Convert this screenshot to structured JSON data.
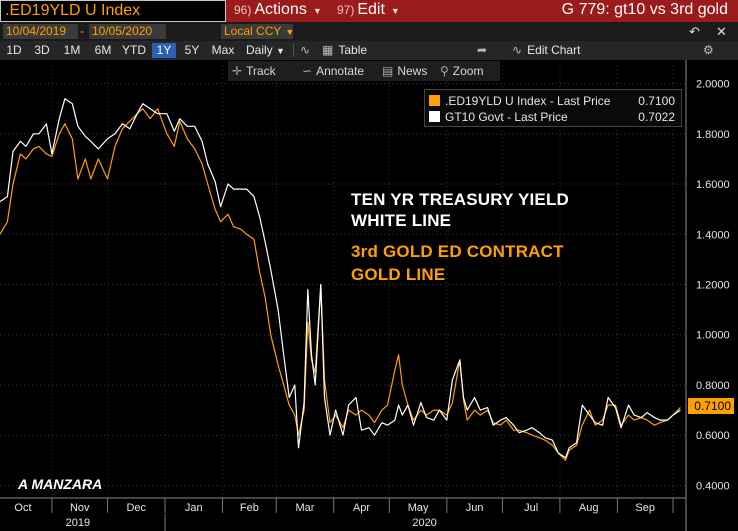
{
  "toolbar": {
    "ticker": ".ED19YLD U Index",
    "actions_num": "96)",
    "actions_label": "Actions",
    "edit_num": "97)",
    "edit_label": "Edit",
    "graph_title": "G 779: gt10 vs 3rd gold",
    "start_date": "10/04/2019",
    "end_date": "10/05/2020",
    "currency": "Local CCY",
    "periods": [
      "1D",
      "3D",
      "1M",
      "6M",
      "YTD",
      "1Y",
      "5Y",
      "Max"
    ],
    "active_period": "1Y",
    "frequency": "Daily",
    "table_label": "Table",
    "edit_chart_label": "Edit Chart",
    "track_label": "Track",
    "annotate_label": "Annotate",
    "news_label": "News",
    "zoom_label": "Zoom"
  },
  "legend": {
    "gold_label": ".ED19YLD U Index - Last Price",
    "gold_value": "0.7100",
    "white_label": "GT10 Govt - Last Price",
    "white_value": "0.7022"
  },
  "annotations": {
    "white_line1": "TEN YR TREASURY YIELD",
    "white_line2": "WHITE LINE",
    "gold_line1": "3rd GOLD ED CONTRACT",
    "gold_line2": "GOLD LINE",
    "author": "A MANZARA"
  },
  "last_price_tag": "0.7100",
  "colors": {
    "gold": "#ffa000",
    "white": "#ffffff",
    "title_bar": "#9b1a1a",
    "active_button": "#2d60b3"
  },
  "chart_data": {
    "type": "line",
    "x_tick_labels": [
      "Oct",
      "Nov",
      "Dec",
      "Jan",
      "Feb",
      "Mar",
      "Apr",
      "May",
      "Jun",
      "Jul",
      "Aug",
      "Sep"
    ],
    "x_year_labels": [
      "2019",
      "2020"
    ],
    "y_tick_labels": [
      "2.0000",
      "1.8000",
      "1.6000",
      "1.4000",
      "1.2000",
      "1.0000",
      "0.8000",
      "0.6000",
      "0.4000"
    ],
    "ylim": [
      0.35,
      2.07
    ],
    "y_axis_side": "right",
    "x_unit": "approximate date (YYYY-MM-DD)",
    "series": [
      {
        "name": ".ED19YLD U Index - Last Price",
        "color": "#ffa000",
        "points": [
          [
            "2019-10-04",
            1.4
          ],
          [
            "2019-10-08",
            1.45
          ],
          [
            "2019-10-11",
            1.6
          ],
          [
            "2019-10-15",
            1.72
          ],
          [
            "2019-10-18",
            1.7
          ],
          [
            "2019-10-22",
            1.74
          ],
          [
            "2019-10-25",
            1.75
          ],
          [
            "2019-10-29",
            1.72
          ],
          [
            "2019-11-01",
            1.71
          ],
          [
            "2019-11-05",
            1.8
          ],
          [
            "2019-11-08",
            1.84
          ],
          [
            "2019-11-12",
            1.78
          ],
          [
            "2019-11-15",
            1.62
          ],
          [
            "2019-11-19",
            1.7
          ],
          [
            "2019-11-22",
            1.62
          ],
          [
            "2019-11-26",
            1.7
          ],
          [
            "2019-12-01",
            1.62
          ],
          [
            "2019-12-05",
            1.75
          ],
          [
            "2019-12-09",
            1.82
          ],
          [
            "2019-12-13",
            1.85
          ],
          [
            "2019-12-17",
            1.88
          ],
          [
            "2019-12-20",
            1.9
          ],
          [
            "2019-12-24",
            1.86
          ],
          [
            "2019-12-28",
            1.9
          ],
          [
            "2020-01-02",
            1.8
          ],
          [
            "2020-01-06",
            1.75
          ],
          [
            "2020-01-09",
            1.85
          ],
          [
            "2020-01-13",
            1.78
          ],
          [
            "2020-01-17",
            1.74
          ],
          [
            "2020-01-21",
            1.68
          ],
          [
            "2020-01-24",
            1.6
          ],
          [
            "2020-01-28",
            1.5
          ],
          [
            "2020-01-31",
            1.45
          ],
          [
            "2020-02-04",
            1.48
          ],
          [
            "2020-02-07",
            1.43
          ],
          [
            "2020-02-11",
            1.42
          ],
          [
            "2020-02-14",
            1.4
          ],
          [
            "2020-02-18",
            1.38
          ],
          [
            "2020-02-21",
            1.25
          ],
          [
            "2020-02-24",
            1.15
          ],
          [
            "2020-02-27",
            1.0
          ],
          [
            "2020-03-02",
            0.88
          ],
          [
            "2020-03-05",
            0.8
          ],
          [
            "2020-03-08",
            0.72
          ],
          [
            "2020-03-11",
            0.68
          ],
          [
            "2020-03-13",
            0.6
          ],
          [
            "2020-03-16",
            0.7
          ],
          [
            "2020-03-18",
            1.05
          ],
          [
            "2020-03-20",
            0.9
          ],
          [
            "2020-03-22",
            0.85
          ],
          [
            "2020-03-25",
            1.2
          ],
          [
            "2020-03-27",
            0.82
          ],
          [
            "2020-03-30",
            0.65
          ],
          [
            "2020-04-02",
            0.68
          ],
          [
            "2020-04-06",
            0.63
          ],
          [
            "2020-04-09",
            0.7
          ],
          [
            "2020-04-13",
            0.68
          ],
          [
            "2020-04-16",
            0.7
          ],
          [
            "2020-04-20",
            0.68
          ],
          [
            "2020-04-23",
            0.65
          ],
          [
            "2020-04-27",
            0.7
          ],
          [
            "2020-04-30",
            0.72
          ],
          [
            "2020-05-04",
            0.86
          ],
          [
            "2020-05-06",
            0.92
          ],
          [
            "2020-05-08",
            0.8
          ],
          [
            "2020-05-11",
            0.72
          ],
          [
            "2020-05-14",
            0.66
          ],
          [
            "2020-05-18",
            0.7
          ],
          [
            "2020-05-21",
            0.68
          ],
          [
            "2020-05-25",
            0.7
          ],
          [
            "2020-05-28",
            0.7
          ],
          [
            "2020-06-01",
            0.68
          ],
          [
            "2020-06-04",
            0.73
          ],
          [
            "2020-06-08",
            0.9
          ],
          [
            "2020-06-10",
            0.74
          ],
          [
            "2020-06-12",
            0.66
          ],
          [
            "2020-06-16",
            0.7
          ],
          [
            "2020-06-19",
            0.68
          ],
          [
            "2020-06-23",
            0.7
          ],
          [
            "2020-06-26",
            0.65
          ],
          [
            "2020-06-30",
            0.64
          ],
          [
            "2020-07-03",
            0.66
          ],
          [
            "2020-07-07",
            0.62
          ],
          [
            "2020-07-10",
            0.62
          ],
          [
            "2020-07-14",
            0.61
          ],
          [
            "2020-07-17",
            0.6
          ],
          [
            "2020-07-21",
            0.59
          ],
          [
            "2020-07-24",
            0.58
          ],
          [
            "2020-07-28",
            0.56
          ],
          [
            "2020-07-31",
            0.53
          ],
          [
            "2020-08-04",
            0.5
          ],
          [
            "2020-08-06",
            0.54
          ],
          [
            "2020-08-10",
            0.56
          ],
          [
            "2020-08-13",
            0.64
          ],
          [
            "2020-08-17",
            0.7
          ],
          [
            "2020-08-20",
            0.64
          ],
          [
            "2020-08-24",
            0.66
          ],
          [
            "2020-08-27",
            0.72
          ],
          [
            "2020-08-31",
            0.72
          ],
          [
            "2020-09-03",
            0.64
          ],
          [
            "2020-09-07",
            0.68
          ],
          [
            "2020-09-10",
            0.66
          ],
          [
            "2020-09-14",
            0.67
          ],
          [
            "2020-09-17",
            0.66
          ],
          [
            "2020-09-21",
            0.64
          ],
          [
            "2020-09-24",
            0.65
          ],
          [
            "2020-09-28",
            0.66
          ],
          [
            "2020-10-01",
            0.68
          ],
          [
            "2020-10-05",
            0.71
          ]
        ]
      },
      {
        "name": "GT10 Govt - Last Price",
        "color": "#ffffff",
        "points": [
          [
            "2019-10-04",
            1.53
          ],
          [
            "2019-10-08",
            1.55
          ],
          [
            "2019-10-11",
            1.73
          ],
          [
            "2019-10-15",
            1.77
          ],
          [
            "2019-10-18",
            1.75
          ],
          [
            "2019-10-22",
            1.8
          ],
          [
            "2019-10-25",
            1.8
          ],
          [
            "2019-10-29",
            1.84
          ],
          [
            "2019-11-01",
            1.72
          ],
          [
            "2019-11-05",
            1.86
          ],
          [
            "2019-11-08",
            1.94
          ],
          [
            "2019-11-12",
            1.92
          ],
          [
            "2019-11-15",
            1.83
          ],
          [
            "2019-11-19",
            1.79
          ],
          [
            "2019-11-22",
            1.77
          ],
          [
            "2019-11-26",
            1.74
          ],
          [
            "2019-12-01",
            1.78
          ],
          [
            "2019-12-05",
            1.8
          ],
          [
            "2019-12-09",
            1.84
          ],
          [
            "2019-12-13",
            1.82
          ],
          [
            "2019-12-17",
            1.88
          ],
          [
            "2019-12-20",
            1.92
          ],
          [
            "2019-12-24",
            1.9
          ],
          [
            "2019-12-28",
            1.88
          ],
          [
            "2020-01-02",
            1.88
          ],
          [
            "2020-01-06",
            1.81
          ],
          [
            "2020-01-09",
            1.86
          ],
          [
            "2020-01-13",
            1.83
          ],
          [
            "2020-01-17",
            1.83
          ],
          [
            "2020-01-21",
            1.77
          ],
          [
            "2020-01-24",
            1.68
          ],
          [
            "2020-01-28",
            1.61
          ],
          [
            "2020-01-31",
            1.51
          ],
          [
            "2020-02-04",
            1.6
          ],
          [
            "2020-02-07",
            1.58
          ],
          [
            "2020-02-11",
            1.58
          ],
          [
            "2020-02-14",
            1.58
          ],
          [
            "2020-02-18",
            1.55
          ],
          [
            "2020-02-21",
            1.47
          ],
          [
            "2020-02-24",
            1.37
          ],
          [
            "2020-02-27",
            1.26
          ],
          [
            "2020-03-02",
            1.1
          ],
          [
            "2020-03-05",
            0.92
          ],
          [
            "2020-03-08",
            0.75
          ],
          [
            "2020-03-11",
            0.8
          ],
          [
            "2020-03-13",
            0.55
          ],
          [
            "2020-03-16",
            0.73
          ],
          [
            "2020-03-18",
            1.18
          ],
          [
            "2020-03-20",
            0.92
          ],
          [
            "2020-03-22",
            0.8
          ],
          [
            "2020-03-25",
            1.2
          ],
          [
            "2020-03-27",
            0.75
          ],
          [
            "2020-03-30",
            0.6
          ],
          [
            "2020-04-02",
            0.7
          ],
          [
            "2020-04-06",
            0.6
          ],
          [
            "2020-04-09",
            0.72
          ],
          [
            "2020-04-13",
            0.75
          ],
          [
            "2020-04-16",
            0.62
          ],
          [
            "2020-04-20",
            0.63
          ],
          [
            "2020-04-23",
            0.6
          ],
          [
            "2020-04-27",
            0.65
          ],
          [
            "2020-04-30",
            0.64
          ],
          [
            "2020-05-04",
            0.66
          ],
          [
            "2020-05-06",
            0.72
          ],
          [
            "2020-05-08",
            0.68
          ],
          [
            "2020-05-11",
            0.72
          ],
          [
            "2020-05-14",
            0.64
          ],
          [
            "2020-05-18",
            0.73
          ],
          [
            "2020-05-21",
            0.67
          ],
          [
            "2020-05-25",
            0.66
          ],
          [
            "2020-05-28",
            0.7
          ],
          [
            "2020-06-01",
            0.66
          ],
          [
            "2020-06-04",
            0.82
          ],
          [
            "2020-06-08",
            0.9
          ],
          [
            "2020-06-10",
            0.75
          ],
          [
            "2020-06-12",
            0.7
          ],
          [
            "2020-06-16",
            0.75
          ],
          [
            "2020-06-19",
            0.7
          ],
          [
            "2020-06-23",
            0.71
          ],
          [
            "2020-06-26",
            0.64
          ],
          [
            "2020-06-30",
            0.66
          ],
          [
            "2020-07-03",
            0.67
          ],
          [
            "2020-07-07",
            0.64
          ],
          [
            "2020-07-10",
            0.61
          ],
          [
            "2020-07-14",
            0.62
          ],
          [
            "2020-07-17",
            0.63
          ],
          [
            "2020-07-21",
            0.61
          ],
          [
            "2020-07-24",
            0.59
          ],
          [
            "2020-07-28",
            0.58
          ],
          [
            "2020-07-31",
            0.53
          ],
          [
            "2020-08-04",
            0.51
          ],
          [
            "2020-08-06",
            0.55
          ],
          [
            "2020-08-10",
            0.57
          ],
          [
            "2020-08-13",
            0.72
          ],
          [
            "2020-08-17",
            0.68
          ],
          [
            "2020-08-20",
            0.65
          ],
          [
            "2020-08-24",
            0.64
          ],
          [
            "2020-08-27",
            0.75
          ],
          [
            "2020-08-31",
            0.71
          ],
          [
            "2020-09-03",
            0.63
          ],
          [
            "2020-09-07",
            0.72
          ],
          [
            "2020-09-10",
            0.68
          ],
          [
            "2020-09-14",
            0.67
          ],
          [
            "2020-09-17",
            0.69
          ],
          [
            "2020-09-21",
            0.67
          ],
          [
            "2020-09-24",
            0.66
          ],
          [
            "2020-09-28",
            0.66
          ],
          [
            "2020-10-01",
            0.68
          ],
          [
            "2020-10-05",
            0.7
          ]
        ]
      }
    ]
  }
}
